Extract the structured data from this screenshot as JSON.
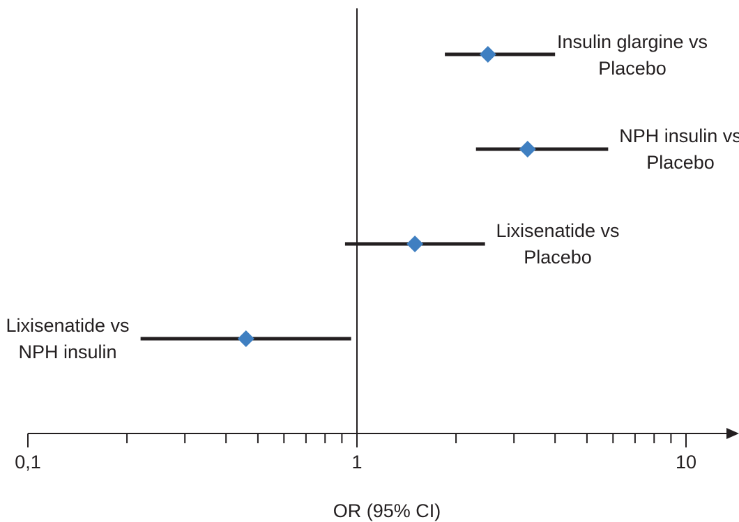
{
  "chart_data": {
    "type": "forest",
    "xscale": "log",
    "xlim": [
      0.1,
      20
    ],
    "xlabel": "OR (95% CI)",
    "xticks_major": [
      {
        "value": 0.1,
        "label": "0,1"
      },
      {
        "value": 1,
        "label": "1"
      },
      {
        "value": 10,
        "label": "10"
      }
    ],
    "xticks_minor": [
      0.2,
      0.3,
      0.4,
      0.5,
      0.6,
      0.7,
      0.8,
      0.9,
      2,
      3,
      4,
      5,
      6,
      7,
      8,
      9
    ],
    "reference_line": 1,
    "marker_color": "#3f7fc1",
    "line_color": "#231f20",
    "series": [
      {
        "label_lines": [
          "Insulin glargine vs",
          "Placebo"
        ],
        "or": 2.5,
        "ci": [
          1.85,
          4.0
        ],
        "label_side": "right"
      },
      {
        "label_lines": [
          "NPH insulin vs",
          "Placebo"
        ],
        "or": 3.3,
        "ci": [
          2.3,
          5.8
        ],
        "label_side": "right"
      },
      {
        "label_lines": [
          "Lixisenatide vs",
          "Placebo"
        ],
        "or": 1.5,
        "ci": [
          0.92,
          2.45
        ],
        "label_side": "right"
      },
      {
        "label_lines": [
          "Lixisenatide vs",
          "NPH insulin"
        ],
        "or": 0.46,
        "ci": [
          0.22,
          0.96
        ],
        "label_side": "left"
      }
    ]
  }
}
